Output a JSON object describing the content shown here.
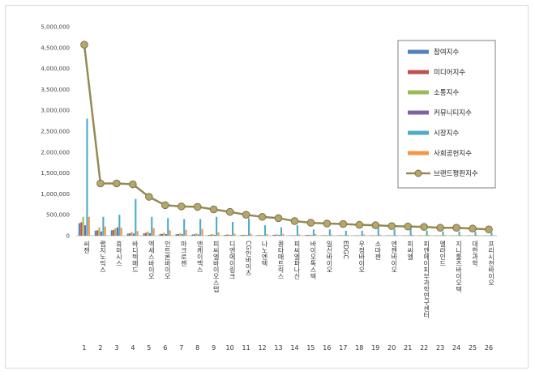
{
  "chart_data": {
    "type": "bar",
    "y_ticks": [
      "0",
      "500,000",
      "1,000,000",
      "1,500,000",
      "2,000,000",
      "2,500,000",
      "3,000,000",
      "3,500,000",
      "4,000,000",
      "4,500,000",
      "5,000,000"
    ],
    "ylim": [
      0,
      5000000
    ],
    "grid": false,
    "legend_position": "top-right",
    "categories": [
      "씨젠",
      "랩지노믹스",
      "휴마시스",
      "바디텍메드",
      "엑세스바이오",
      "인트론바이오",
      "마크로젠",
      "엔케이맥스",
      "피씨엘바이오스텝",
      "디엔에이링크",
      "CG인바이츠",
      "나노엔텍",
      "퀀타매트릭스",
      "피씨엘파나신",
      "바이오톡스텍",
      "일신바이오",
      "EDGC",
      "우정바이오",
      "소마젠",
      "엔젠바이오",
      "피씨엘",
      "피엔에이피부과학연구센터",
      "엘라인드",
      "지니툴즈바이오텍",
      "대한과학",
      "프리시젼바이오"
    ],
    "index_labels": [
      "1",
      "2",
      "3",
      "4",
      "5",
      "6",
      "7",
      "8",
      "9",
      "10",
      "11",
      "12",
      "13",
      "14",
      "15",
      "16",
      "17",
      "18",
      "19",
      "20",
      "21",
      "22",
      "23",
      "24",
      "25",
      "26"
    ],
    "series": [
      {
        "name": "참여지수",
        "color": "#4f81bd",
        "values": [
          300000,
          120000,
          130000,
          50000,
          60000,
          40000,
          35000,
          30000,
          20000,
          20000,
          15000,
          12000,
          20000,
          8000,
          15000,
          10000,
          10000,
          8000,
          8000,
          8000,
          6000,
          6000,
          5000,
          5000,
          5000,
          4000
        ]
      },
      {
        "name": "미디어지수",
        "color": "#c0504d",
        "values": [
          320000,
          130000,
          140000,
          60000,
          70000,
          45000,
          40000,
          35000,
          25000,
          25000,
          20000,
          15000,
          25000,
          10000,
          20000,
          12000,
          12000,
          10000,
          10000,
          10000,
          8000,
          8000,
          7000,
          7000,
          6000,
          5000
        ]
      },
      {
        "name": "소통지수",
        "color": "#9bbb59",
        "values": [
          450000,
          200000,
          180000,
          90000,
          100000,
          70000,
          60000,
          55000,
          40000,
          30000,
          25000,
          20000,
          30000,
          15000,
          25000,
          15000,
          15000,
          12000,
          12000,
          12000,
          10000,
          10000,
          9000,
          9000,
          8000,
          7000
        ]
      },
      {
        "name": "커뮤니티지수",
        "color": "#8064a2",
        "values": [
          250000,
          100000,
          200000,
          50000,
          60000,
          40000,
          35000,
          30000,
          20000,
          20000,
          15000,
          12000,
          20000,
          8000,
          15000,
          10000,
          10000,
          8000,
          8000,
          8000,
          6000,
          6000,
          5000,
          5000,
          5000,
          4000
        ]
      },
      {
        "name": "시장지수",
        "color": "#4bacc6",
        "values": [
          2800000,
          450000,
          500000,
          880000,
          450000,
          420000,
          400000,
          400000,
          450000,
          330000,
          420000,
          250000,
          200000,
          250000,
          150000,
          150000,
          120000,
          120000,
          200000,
          150000,
          180000,
          120000,
          100000,
          100000,
          90000,
          80000
        ]
      },
      {
        "name": "사회공헌지수",
        "color": "#f79646",
        "values": [
          450000,
          220000,
          190000,
          110000,
          180000,
          130000,
          140000,
          160000,
          80000,
          50000,
          50000,
          40000,
          45000,
          30000,
          40000,
          25000,
          20000,
          30000,
          25000,
          20000,
          25000,
          20000,
          15000,
          15000,
          12000,
          10000
        ]
      }
    ],
    "line_series": {
      "name": "브랜드평판지수",
      "color": "#948a54",
      "values": [
        4570000,
        1250000,
        1250000,
        1230000,
        930000,
        730000,
        700000,
        690000,
        630000,
        570000,
        500000,
        450000,
        420000,
        350000,
        310000,
        290000,
        280000,
        260000,
        250000,
        230000,
        220000,
        210000,
        190000,
        190000,
        170000,
        150000
      ]
    }
  }
}
